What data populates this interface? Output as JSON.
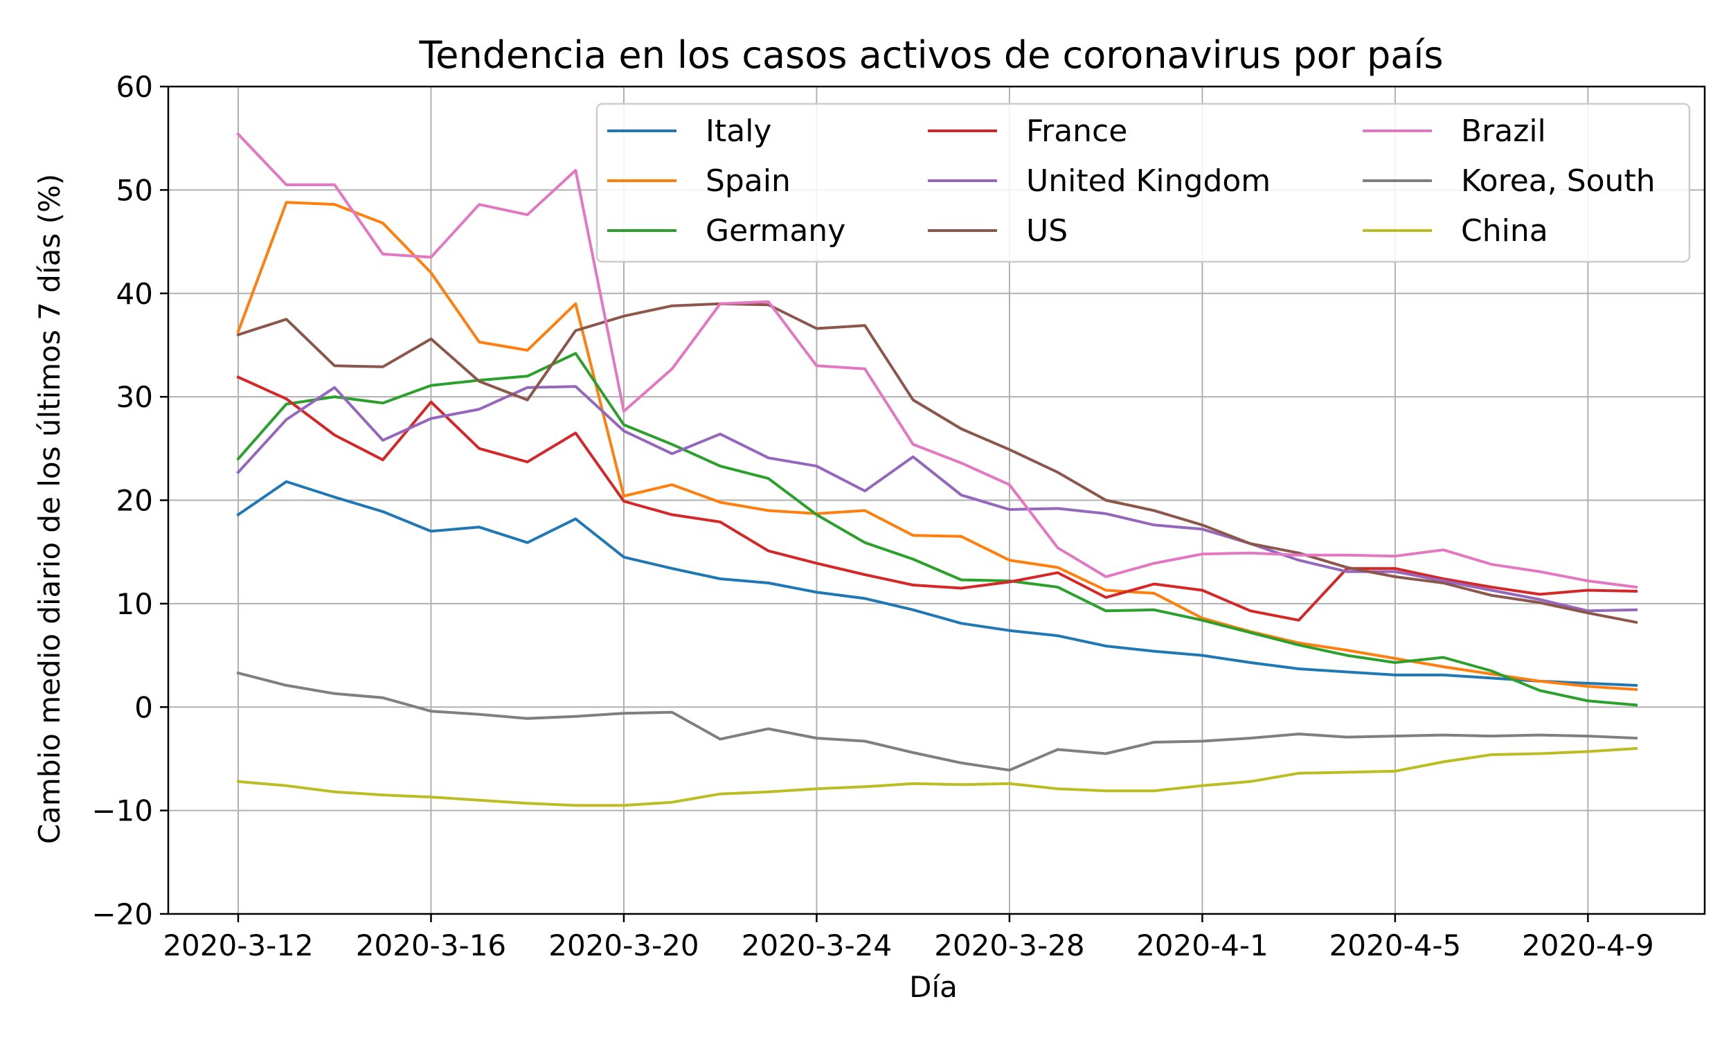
{
  "chart_data": {
    "type": "line",
    "title": "Tendencia en los casos activos de coronavirus por país",
    "xlabel": "Día",
    "ylabel": "Cambio medio diario de los últimos 7 días (%)",
    "ylim": [
      -20,
      60
    ],
    "yticks": [
      -20,
      -10,
      0,
      10,
      20,
      30,
      40,
      50,
      60
    ],
    "ytick_labels": [
      "−20",
      "−10",
      "0",
      "10",
      "20",
      "30",
      "40",
      "50",
      "60"
    ],
    "x": [
      "2020-3-12",
      "2020-3-13",
      "2020-3-14",
      "2020-3-15",
      "2020-3-16",
      "2020-3-17",
      "2020-3-18",
      "2020-3-19",
      "2020-3-20",
      "2020-3-21",
      "2020-3-22",
      "2020-3-23",
      "2020-3-24",
      "2020-3-25",
      "2020-3-26",
      "2020-3-27",
      "2020-3-28",
      "2020-3-29",
      "2020-3-30",
      "2020-3-31",
      "2020-4-1",
      "2020-4-2",
      "2020-4-3",
      "2020-4-4",
      "2020-4-5",
      "2020-4-6",
      "2020-4-7",
      "2020-4-8",
      "2020-4-9",
      "2020-4-10"
    ],
    "xtick_labels": [
      "2020-3-12",
      "2020-3-16",
      "2020-3-20",
      "2020-3-24",
      "2020-3-28",
      "2020-4-1",
      "2020-4-5",
      "2020-4-9"
    ],
    "grid": true,
    "legend_position": "top-right",
    "legend_columns": 3,
    "series": [
      {
        "name": "Italy",
        "color": "#1f77b4",
        "values": [
          18.6,
          21.8,
          20.3,
          18.9,
          17.0,
          17.4,
          15.9,
          18.2,
          14.5,
          13.4,
          12.4,
          12.0,
          11.1,
          10.5,
          9.4,
          8.1,
          7.4,
          6.9,
          5.9,
          5.4,
          5.0,
          4.3,
          3.7,
          3.4,
          3.1,
          3.1,
          2.8,
          2.5,
          2.3,
          2.1
        ]
      },
      {
        "name": "Spain",
        "color": "#ff7f0e",
        "values": [
          36.3,
          48.8,
          48.6,
          46.8,
          42.0,
          35.3,
          34.5,
          39.0,
          20.4,
          21.5,
          19.8,
          19.0,
          18.7,
          19.0,
          16.6,
          16.5,
          14.2,
          13.5,
          11.3,
          11.0,
          8.6,
          7.3,
          6.2,
          5.5,
          4.7,
          3.9,
          3.2,
          2.5,
          2.0,
          1.7
        ]
      },
      {
        "name": "Germany",
        "color": "#2ca02c",
        "values": [
          24.0,
          29.3,
          30.0,
          29.4,
          31.1,
          31.6,
          32.0,
          34.2,
          27.3,
          25.4,
          23.3,
          22.1,
          18.6,
          15.9,
          14.3,
          12.3,
          12.2,
          11.6,
          9.3,
          9.4,
          8.4,
          7.2,
          6.0,
          5.0,
          4.3,
          4.8,
          3.5,
          1.6,
          0.6,
          0.2
        ]
      },
      {
        "name": "France",
        "color": "#d62728",
        "values": [
          31.9,
          29.8,
          26.3,
          23.9,
          29.5,
          25.0,
          23.7,
          26.5,
          19.9,
          18.6,
          17.9,
          15.1,
          13.9,
          12.8,
          11.8,
          11.5,
          12.1,
          13.0,
          10.6,
          11.9,
          11.3,
          9.3,
          8.4,
          13.4,
          13.4,
          12.4,
          11.6,
          10.9,
          11.3,
          11.2
        ]
      },
      {
        "name": "United Kingdom",
        "color": "#9467bd",
        "values": [
          22.7,
          27.8,
          30.9,
          25.8,
          27.9,
          28.8,
          30.9,
          31.0,
          26.7,
          24.5,
          26.4,
          24.1,
          23.3,
          20.9,
          24.2,
          20.5,
          19.1,
          19.2,
          18.7,
          17.6,
          17.2,
          15.8,
          14.2,
          13.1,
          13.1,
          12.2,
          11.3,
          10.4,
          9.3,
          9.4
        ]
      },
      {
        "name": "US",
        "color": "#8c564b",
        "values": [
          36.0,
          37.5,
          33.0,
          32.9,
          35.6,
          31.5,
          29.7,
          36.4,
          37.8,
          38.8,
          39.0,
          38.9,
          36.6,
          36.9,
          29.7,
          26.9,
          24.9,
          22.7,
          20.0,
          19.0,
          17.6,
          15.8,
          14.9,
          13.5,
          12.6,
          12.0,
          10.8,
          10.1,
          9.1,
          8.2
        ]
      },
      {
        "name": "Brazil",
        "color": "#e377c2",
        "values": [
          55.4,
          50.5,
          50.5,
          43.8,
          43.5,
          48.6,
          47.6,
          51.9,
          28.6,
          32.7,
          39.0,
          39.2,
          33.0,
          32.7,
          25.4,
          23.6,
          21.5,
          15.4,
          12.6,
          13.9,
          14.8,
          14.9,
          14.7,
          14.7,
          14.6,
          15.2,
          13.8,
          13.1,
          12.2,
          11.6
        ]
      },
      {
        "name": "Korea, South",
        "color": "#7f7f7f",
        "values": [
          3.3,
          2.1,
          1.3,
          0.9,
          -0.4,
          -0.7,
          -1.1,
          -0.9,
          -0.6,
          -0.5,
          -3.1,
          -2.1,
          -3.0,
          -3.3,
          -4.4,
          -5.4,
          -6.1,
          -4.1,
          -4.5,
          -3.4,
          -3.3,
          -3.0,
          -2.6,
          -2.9,
          -2.8,
          -2.7,
          -2.8,
          -2.7,
          -2.8,
          -3.0
        ]
      },
      {
        "name": "China",
        "color": "#bcbd22",
        "values": [
          -7.2,
          -7.6,
          -8.2,
          -8.5,
          -8.7,
          -9.0,
          -9.3,
          -9.5,
          -9.5,
          -9.2,
          -8.4,
          -8.2,
          -7.9,
          -7.7,
          -7.4,
          -7.5,
          -7.4,
          -7.9,
          -8.1,
          -8.1,
          -7.6,
          -7.2,
          -6.4,
          -6.3,
          -6.2,
          -5.3,
          -4.6,
          -4.5,
          -4.3,
          -4.0
        ]
      }
    ]
  }
}
